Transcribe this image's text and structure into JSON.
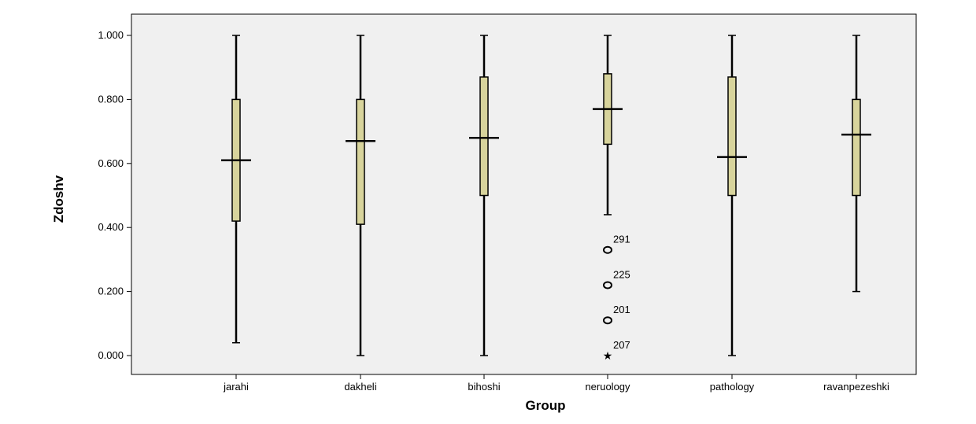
{
  "chart_data": {
    "type": "box",
    "title": "",
    "xlabel": "Group",
    "ylabel": "Zdoshv",
    "ylim": [
      -0.05,
      1.06
    ],
    "yticks": [
      0.0,
      0.2,
      0.4,
      0.6,
      0.8,
      1.0
    ],
    "ytick_labels": [
      "0.000",
      "0.200",
      "0.400",
      "0.600",
      "0.800",
      "1.000"
    ],
    "grid": false,
    "colors": {
      "box_fill": "#d8d49c",
      "box_stroke": "#000000",
      "plot_bg": "#f0f0f0"
    },
    "categories": [
      "jarahi",
      "dakheli",
      "bihoshi",
      "neruology",
      "pathology",
      "ravanpezeshki"
    ],
    "boxes": [
      {
        "category": "jarahi",
        "whisker_low": 0.04,
        "q1": 0.42,
        "median": 0.61,
        "q3": 0.8,
        "whisker_high": 1.0
      },
      {
        "category": "dakheli",
        "whisker_low": 0.0,
        "q1": 0.41,
        "median": 0.67,
        "q3": 0.8,
        "whisker_high": 1.0
      },
      {
        "category": "bihoshi",
        "whisker_low": 0.0,
        "q1": 0.5,
        "median": 0.68,
        "q3": 0.87,
        "whisker_high": 1.0
      },
      {
        "category": "neruology",
        "whisker_low": 0.44,
        "q1": 0.66,
        "median": 0.77,
        "q3": 0.88,
        "whisker_high": 1.0
      },
      {
        "category": "pathology",
        "whisker_low": 0.0,
        "q1": 0.5,
        "median": 0.62,
        "q3": 0.87,
        "whisker_high": 1.0
      },
      {
        "category": "ravanpezeshki",
        "whisker_low": 0.2,
        "q1": 0.5,
        "median": 0.69,
        "q3": 0.8,
        "whisker_high": 1.0
      }
    ],
    "outliers": [
      {
        "category": "neruology",
        "value": 0.33,
        "label": "291",
        "marker": "o"
      },
      {
        "category": "neruology",
        "value": 0.22,
        "label": "225",
        "marker": "o"
      },
      {
        "category": "neruology",
        "value": 0.11,
        "label": "201",
        "marker": "o"
      },
      {
        "category": "neruology",
        "value": 0.0,
        "label": "207",
        "marker": "*"
      }
    ]
  }
}
